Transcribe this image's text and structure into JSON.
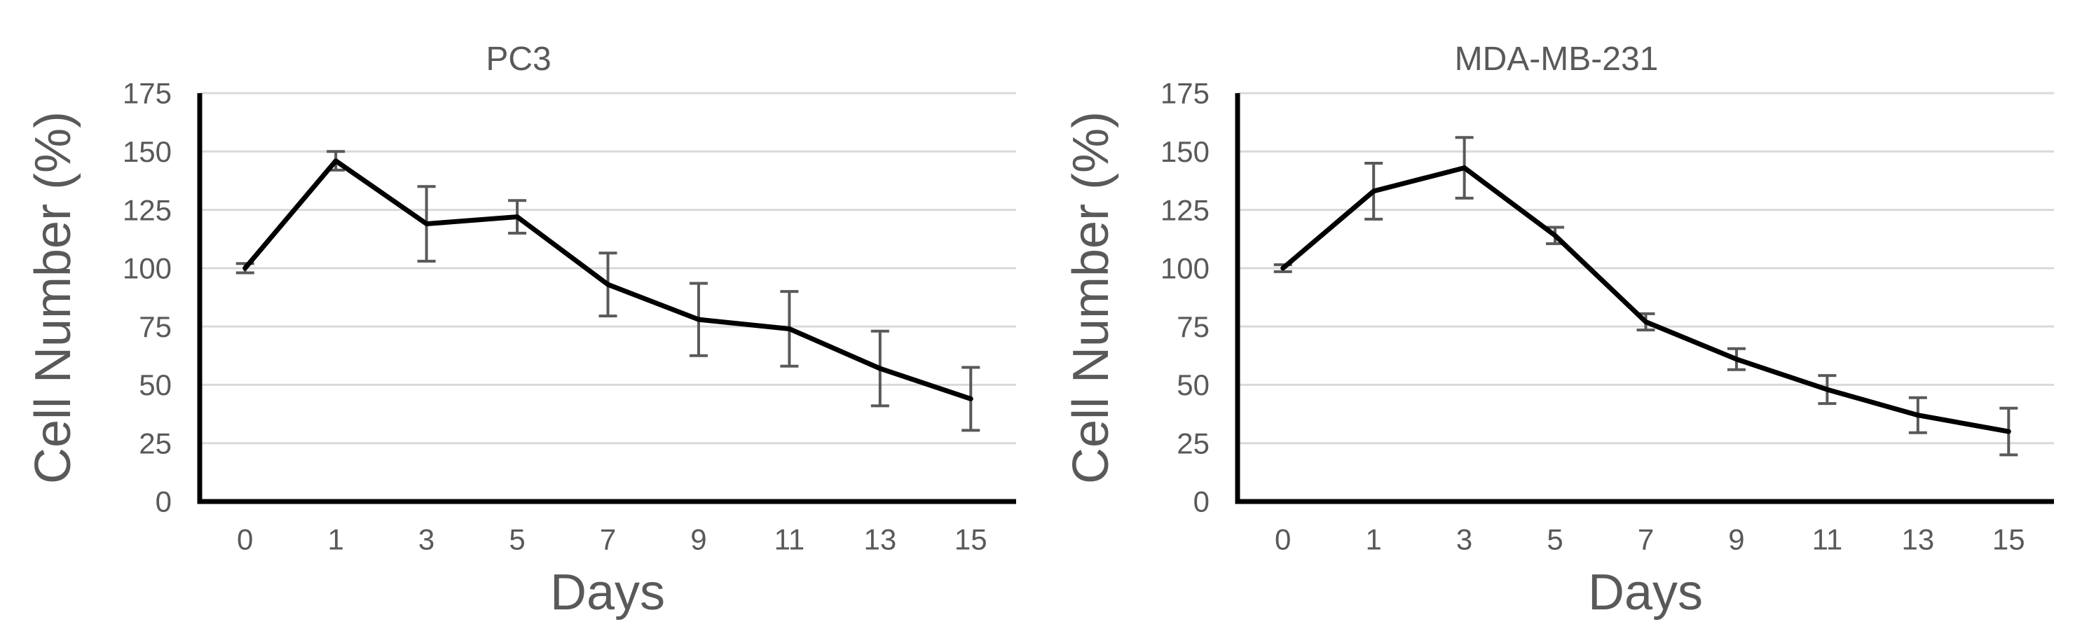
{
  "page": {
    "background": "#ffffff",
    "description": "Two line charts of relative cell number over days for two cell lines"
  },
  "colors": {
    "text": "#595959",
    "gridline": "#d9d9d9",
    "series_line": "#000000",
    "error_bar": "#595959",
    "axis_line": "#000000"
  },
  "chart_data": [
    {
      "type": "line",
      "title": "PC3",
      "xlabel": "Days",
      "ylabel": "Cell Number (%)",
      "categories": [
        "0",
        "1",
        "3",
        "5",
        "7",
        "9",
        "11",
        "13",
        "15"
      ],
      "values": [
        100,
        146,
        119,
        122,
        93,
        78,
        74,
        57,
        44
      ],
      "error_bars": [
        2,
        4,
        16,
        7,
        13.5,
        15.5,
        16,
        16,
        13.5
      ],
      "ylim": [
        0,
        175
      ],
      "ytick_step": 25,
      "grid": true,
      "legend_position": "none"
    },
    {
      "type": "line",
      "title": "MDA-MB-231",
      "xlabel": "Days",
      "ylabel": "Cell Number (%)",
      "categories": [
        "0",
        "1",
        "3",
        "5",
        "7",
        "9",
        "11",
        "13",
        "15"
      ],
      "values": [
        100,
        133,
        143,
        114,
        77,
        61,
        48,
        37,
        30
      ],
      "error_bars": [
        1.5,
        12,
        13,
        3.5,
        3.5,
        4.5,
        6,
        7.5,
        10
      ],
      "ylim": [
        0,
        175
      ],
      "ytick_step": 25,
      "grid": true,
      "legend_position": "none"
    }
  ]
}
